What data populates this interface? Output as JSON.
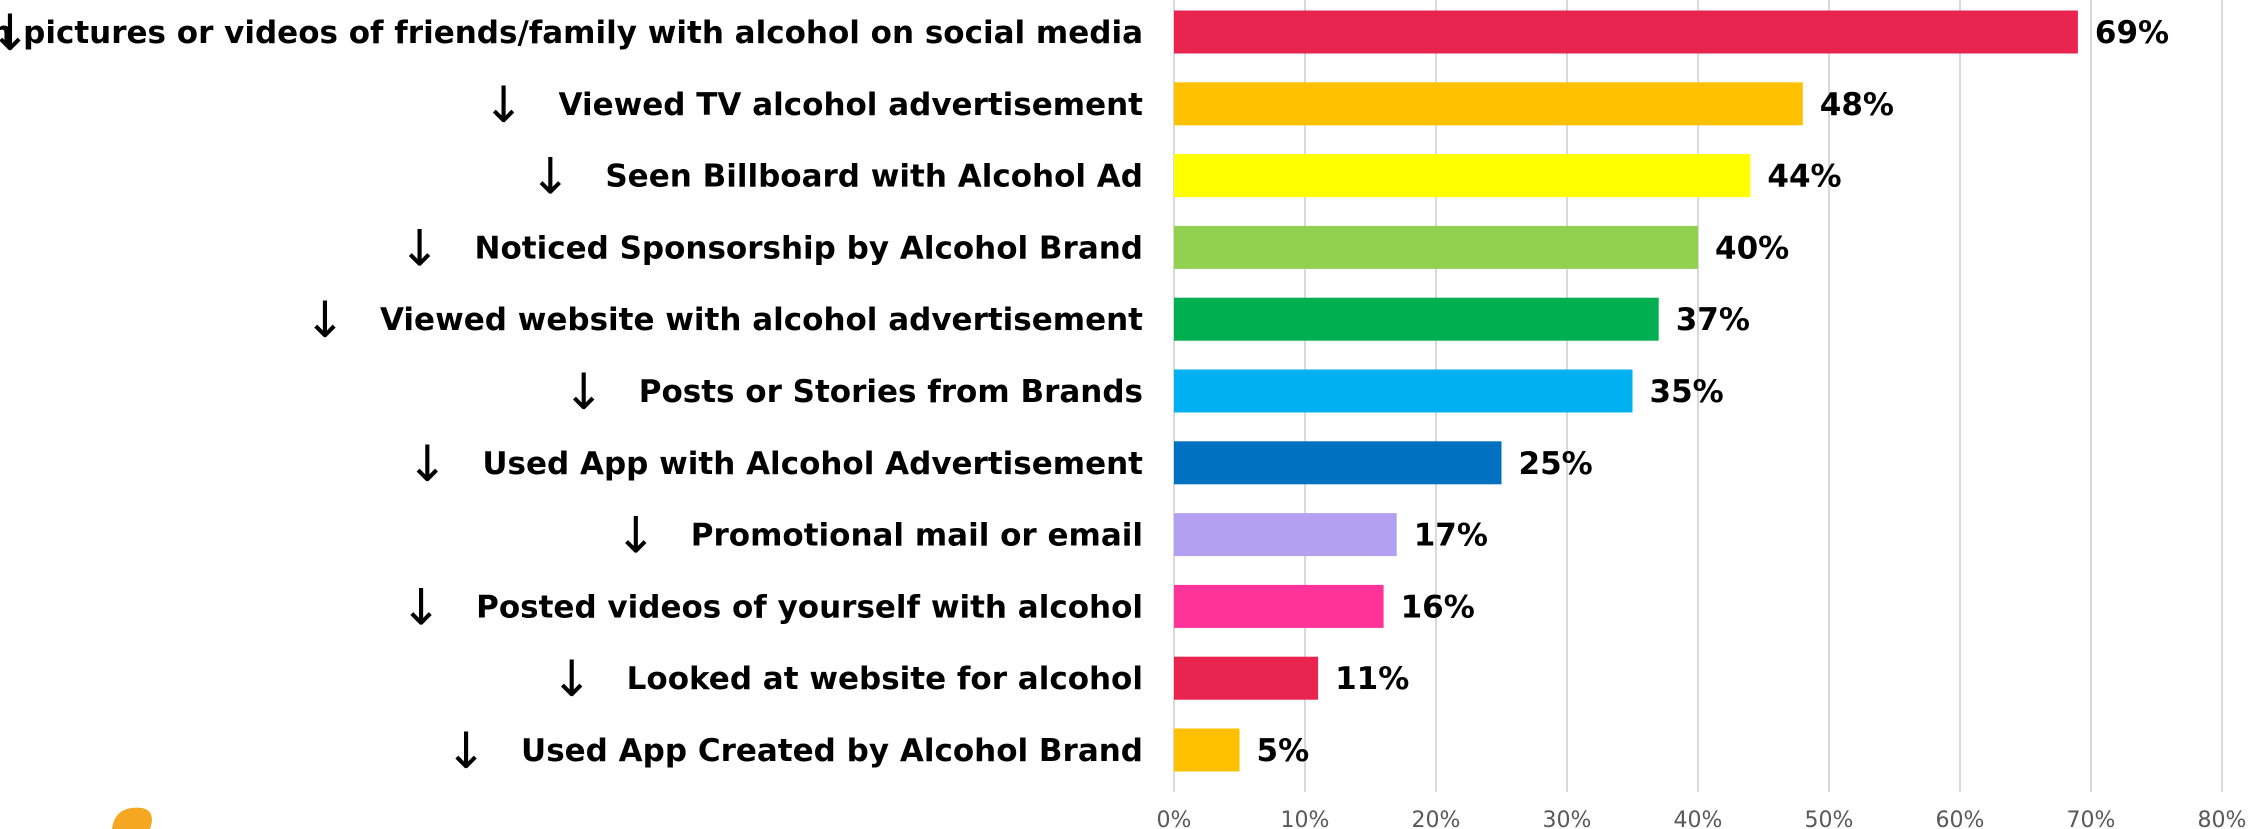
{
  "chart_data": {
    "type": "bar",
    "orientation": "horizontal",
    "categories": [
      "Seen pictures or videos of friends/family with alcohol on social media",
      "Viewed TV alcohol advertisement",
      "Seen Billboard with Alcohol Ad",
      "Noticed Sponsorship by Alcohol Brand",
      "Viewed website with alcohol advertisement",
      "Posts or Stories from Brands",
      "Used App with Alcohol Advertisement",
      "Promotional mail or email",
      "Posted videos of yourself with alcohol",
      "Looked at website for alcohol",
      "Used App Created by Alcohol Brand"
    ],
    "values": [
      69,
      48,
      44,
      40,
      37,
      35,
      25,
      17,
      16,
      11,
      5
    ],
    "value_labels": [
      "69%",
      "48%",
      "44%",
      "40%",
      "37%",
      "35%",
      "25%",
      "17%",
      "16%",
      "11%",
      "5%"
    ],
    "bar_colors": [
      "#E8244F",
      "#FFC000",
      "#FFFF00",
      "#92D050",
      "#00B050",
      "#00B0F0",
      "#0070C0",
      "#B4A0F0",
      "#FF3399",
      "#E8244F",
      "#FFC000"
    ],
    "category_marker": "↓",
    "xlim": [
      0,
      80
    ],
    "xticks": [
      0,
      10,
      20,
      30,
      40,
      50,
      60,
      70,
      80
    ],
    "xtick_labels": [
      "0%",
      "10%",
      "20%",
      "30%",
      "40%",
      "50%",
      "60%",
      "70%",
      "80%"
    ],
    "grid": true,
    "title": "",
    "xlabel": "",
    "ylabel": ""
  }
}
